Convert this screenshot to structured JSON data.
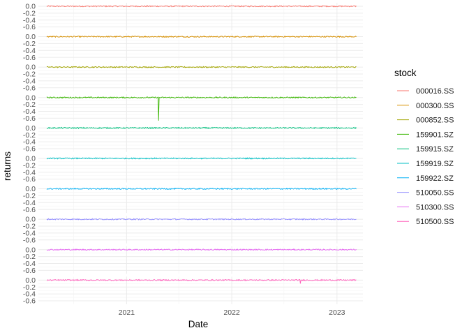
{
  "chart_data": {
    "type": "line",
    "xlabel": "Date",
    "ylabel": "returns",
    "legend_title": "stock",
    "legend_position": "right",
    "grid": true,
    "x_range": [
      "2020-03-01",
      "2023-04-01"
    ],
    "x_ticks": [
      {
        "label": "2021",
        "date": "2021-01-01"
      },
      {
        "label": "2022",
        "date": "2022-01-01"
      },
      {
        "label": "2023",
        "date": "2023-01-01"
      }
    ],
    "y_range": [
      -0.7,
      0.1
    ],
    "y_ticks": [
      0.0,
      -0.2,
      -0.4,
      -0.6
    ],
    "y_tick_labels": [
      "0.0",
      "-0.2",
      "-0.4",
      "-0.6"
    ],
    "series_start": "2020-03-30",
    "series_end": "2023-03-10",
    "series": [
      {
        "name": "000016.SS",
        "strip": "000016.SS",
        "color": "#F8766D",
        "values": [
          {
            "date": "2020-03-30",
            "y": 0.0
          },
          {
            "date": "2023-03-10",
            "y": 0.0
          }
        ]
      },
      {
        "name": "000300.SS",
        "strip": "000300.SS",
        "color": "#D89000",
        "values": [
          {
            "date": "2020-03-30",
            "y": 0.0
          },
          {
            "date": "2023-03-10",
            "y": 0.0
          }
        ]
      },
      {
        "name": "000852.SS",
        "strip": "000852.SS",
        "color": "#A3A500",
        "values": [
          {
            "date": "2020-03-30",
            "y": 0.0
          },
          {
            "date": "2023-03-10",
            "y": 0.0
          }
        ]
      },
      {
        "name": "159901.SZ",
        "strip": "159901.SZ",
        "color": "#39B600",
        "values": [
          {
            "date": "2020-03-30",
            "y": 0.0
          },
          {
            "date": "2021-04-20",
            "y": 0.0
          },
          {
            "date": "2021-04-22",
            "y": -0.67
          },
          {
            "date": "2021-04-24",
            "y": 0.0
          },
          {
            "date": "2023-03-10",
            "y": 0.0
          }
        ]
      },
      {
        "name": "159915.SZ",
        "strip": "159915.SZ",
        "color": "#00BF7D",
        "values": [
          {
            "date": "2020-03-30",
            "y": 0.0
          },
          {
            "date": "2023-03-10",
            "y": 0.0
          }
        ]
      },
      {
        "name": "159919.SZ",
        "strip": "159919.SZ",
        "color": "#00BFC4",
        "values": [
          {
            "date": "2020-03-30",
            "y": 0.0
          },
          {
            "date": "2023-03-10",
            "y": 0.0
          }
        ]
      },
      {
        "name": "159922.SZ",
        "strip": "159922.SZ",
        "color": "#00B0F6",
        "values": [
          {
            "date": "2020-03-30",
            "y": 0.0
          },
          {
            "date": "2023-03-10",
            "y": 0.0
          }
        ]
      },
      {
        "name": "510050.SS",
        "strip": "510050.SS",
        "color": "#9590FF",
        "values": [
          {
            "date": "2020-03-30",
            "y": 0.0
          },
          {
            "date": "2023-03-10",
            "y": 0.0
          }
        ]
      },
      {
        "name": "510300.SS",
        "strip": "510300.SS",
        "color": "#E76BF3",
        "values": [
          {
            "date": "2020-03-30",
            "y": 0.0
          },
          {
            "date": "2023-03-10",
            "y": 0.0
          }
        ]
      },
      {
        "name": "510500.SS",
        "strip": "510500.SS",
        "color": "#FF62BC",
        "values": [
          {
            "date": "2020-03-30",
            "y": 0.0
          },
          {
            "date": "2022-08-25",
            "y": 0.0
          },
          {
            "date": "2022-08-27",
            "y": -0.1
          },
          {
            "date": "2022-08-29",
            "y": 0.0
          },
          {
            "date": "2023-03-10",
            "y": 0.0
          }
        ]
      }
    ]
  }
}
